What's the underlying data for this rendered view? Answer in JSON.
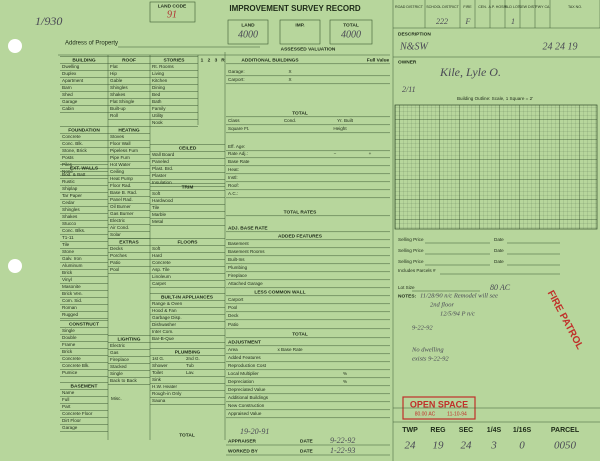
{
  "header": {
    "page_number": "1/930",
    "land_code_label": "LAND CODE",
    "land_code": "91",
    "title": "IMPROVEMENT SURVEY RECORD",
    "land_label": "LAND",
    "land": "4000",
    "imp_label": "IMP.",
    "total_label": "TOTAL",
    "total": "4000",
    "assessed_valuation": "ASSESSED VALUATION",
    "address_label": "Address of Property"
  },
  "districts": {
    "labels": [
      "ROAD DISTRICT",
      "SCHOOL DISTRICT",
      "FIRE",
      "CEN.",
      "A.P. HOSP.",
      "BLD LOT",
      "SEW DIST",
      "FWY CA",
      "TAX NO."
    ],
    "values": [
      "222",
      "F",
      "1"
    ]
  },
  "description": {
    "label": "DESCRIPTION",
    "value": "N&SW",
    "location": "24 24 19",
    "owner_label": "OWNER",
    "owner": "Kile, Lyle O.",
    "note": "2/11",
    "outline": "Building Outline: Scale, 1 Square = 2'"
  },
  "form": {
    "building": {
      "heading": "BUILDING",
      "items": [
        "Dwelling",
        "Duplex",
        "Apartment",
        "Barn",
        "Shed",
        "Garage",
        "Cabin"
      ]
    },
    "roof": {
      "heading": "ROOF",
      "items": [
        "Flat",
        "Hip",
        "Gable",
        "Shingles",
        "Shakes",
        "Flat Shingle",
        "Built-up",
        "Roll"
      ]
    },
    "stories": {
      "heading": "STORIES",
      "columns": [
        "1",
        "2",
        "3",
        "R"
      ],
      "items": [
        "Rt. Rooms",
        "Living",
        "Kitchen",
        "Dining",
        "Bed",
        "Bath",
        "Family",
        "Utility",
        "Nook"
      ]
    },
    "foundation": {
      "heading": "FOUNDATION",
      "items": [
        "Concrete",
        "Conc. Blk.",
        "Stone, Brick",
        "Posts",
        "Piles",
        "None"
      ]
    },
    "heating": {
      "heading": "HEATING",
      "items": [
        "Stoves",
        "Floor Wall",
        "Pipeless Furn",
        "Pipe Furn",
        "Hot Water",
        "Ceiling",
        "Heat Pump",
        "Floor Rad.",
        "Base B. Rad.",
        "Panel Rad.",
        "Oil Burner",
        "Gas Burner",
        "Electric",
        "Air Cond.",
        "Solar"
      ]
    },
    "ceiled": {
      "heading": "CEILED",
      "items": [
        "Wall Board",
        "Paneled",
        "Plast. Brd.",
        "Plaster",
        "Insulation"
      ]
    },
    "ext_walls": {
      "heading": "EXT. WALLS",
      "items": [
        "Bod. & Batt",
        "Rustic",
        "Shiplap",
        "Tar Paper",
        "Cedar",
        "Shingles",
        "Shakes",
        "Stucco",
        "Conc. Blks.",
        "T1-11",
        "Tile",
        "Stone",
        "Galv. Iron",
        "Aluminum",
        "Brick",
        "Vinyl",
        "Masonite",
        "Brick Ven.",
        "Com. Sid.",
        "Roman",
        "Rugged"
      ]
    },
    "trim": {
      "heading": "TRIM",
      "items": [
        "Soft",
        "Hardwood",
        "Tile",
        "Marble",
        "Metal"
      ]
    },
    "extras": {
      "heading": "EXTRAS",
      "items": [
        "Decks",
        "Porches",
        "Patio",
        "Pool"
      ]
    },
    "floors": {
      "heading": "FLOORS",
      "items": [
        "Soft",
        "Hard",
        "Concrete",
        "Asp. Tile",
        "Linoleum",
        "Carpet"
      ]
    },
    "builtin": {
      "heading": "BUILT-IN APPLIANCES",
      "items": [
        "Range & Oven",
        "Hood & Fan",
        "Garbage Disp.",
        "Dishwasher",
        "Inter Com.",
        "Bar-B-Que"
      ]
    },
    "construct": {
      "heading": "CONSTRUCT",
      "items": [
        "Single",
        "Double",
        "Frame",
        "Brick",
        "Concrete",
        "Concrete Blk.",
        "Pumice"
      ]
    },
    "lighting": {
      "heading": "LIGHTING",
      "items": [
        "Electric",
        "Gas",
        "Fireplace",
        "Stacked",
        "Single",
        "Back to Back"
      ]
    },
    "plumbing": {
      "heading": "PLUMBING",
      "items": [
        [
          "1st G.",
          "2nd G."
        ],
        [
          "Shower",
          "Tub"
        ],
        [
          "Toilet",
          "Lav."
        ],
        "Sink",
        "H.W. Heater",
        "Rough-in Only",
        "Sauna"
      ]
    },
    "basement": {
      "heading": "BASEMENT",
      "items": [
        "Name",
        "Full",
        "Part",
        "Concrete Floor",
        "Dirt Floor",
        "Garage"
      ]
    },
    "misc": "Misc.",
    "total": "TOTAL"
  },
  "appraisal": [
    [
      "ADDITIONAL BUILDINGS",
      "Full Value"
    ],
    [
      "Garage:",
      "X"
    ],
    [
      "Carport:",
      "X"
    ],
    [
      "TOTAL"
    ],
    [
      "Class",
      "Cond.",
      "Yr. Built"
    ],
    [
      "Square Ft.",
      "Height"
    ],
    [
      "Eff. Age:"
    ],
    [
      "Rate Adj.:",
      "−",
      "+"
    ],
    [
      "Base Rate"
    ],
    [
      "Heat:"
    ],
    [
      "Instl:"
    ],
    [
      "Roof:"
    ],
    [
      "A.C.:"
    ],
    [
      "TOTAL RATES"
    ],
    [
      "ADJ. BASE RATE"
    ],
    [
      "ADDED FEATURES"
    ],
    [
      "Basement"
    ],
    [
      "Basement Rooms"
    ],
    [
      "Built-Ins"
    ],
    [
      "Plumbing"
    ],
    [
      "Fireplace"
    ],
    [
      "Attached Garage"
    ],
    [
      "LESS COMMON WALL"
    ],
    [
      "Carport"
    ],
    [
      "Pool"
    ],
    [
      "Deck"
    ],
    [
      "Patio"
    ],
    [
      "TOTAL"
    ],
    [
      "ADJUSTMENT"
    ],
    [
      "Area",
      "x Base Rate"
    ],
    [
      "Added Features"
    ],
    [
      "Reproduction Cost"
    ],
    [
      "Local Multiplier",
      "%"
    ],
    [
      "Depreciation",
      "%"
    ],
    [
      "Depreciated Value"
    ],
    [
      "Additional Buildings"
    ],
    [
      "New Construction"
    ],
    [
      "Appraised Value"
    ]
  ],
  "signoff": {
    "note": "19-20-91",
    "appraiser": "APPRAISER",
    "date": "DATE",
    "appraised_date": "9-22-92",
    "worked_by": "WORKED BY",
    "worked_date": "1-22-93"
  },
  "sales": {
    "selling_price": "Selling Price",
    "date": "Date",
    "parcels": "Includes Parcels #",
    "lot_size": "Lot Size",
    "lot_value": "80 AC",
    "notes_label": "NOTES:",
    "notes": [
      "11/28/90 n/c Remodel will see",
      "2nd floor",
      "12/5/94 P n/c",
      "9-22-92",
      "No dwelling",
      "exists 9-22-92"
    ]
  },
  "stamps": {
    "fire_patrol": "FIRE PATROL",
    "open_space": "OPEN SPACE",
    "open_space_area": "80.00 AC",
    "open_space_date": "11-10-94"
  },
  "parcel": {
    "labels": [
      "TWP",
      "REG",
      "SEC",
      "1/4S",
      "1/16S",
      "PARCEL"
    ],
    "values": [
      "24",
      "19",
      "24",
      "3",
      "0",
      "0050"
    ]
  }
}
